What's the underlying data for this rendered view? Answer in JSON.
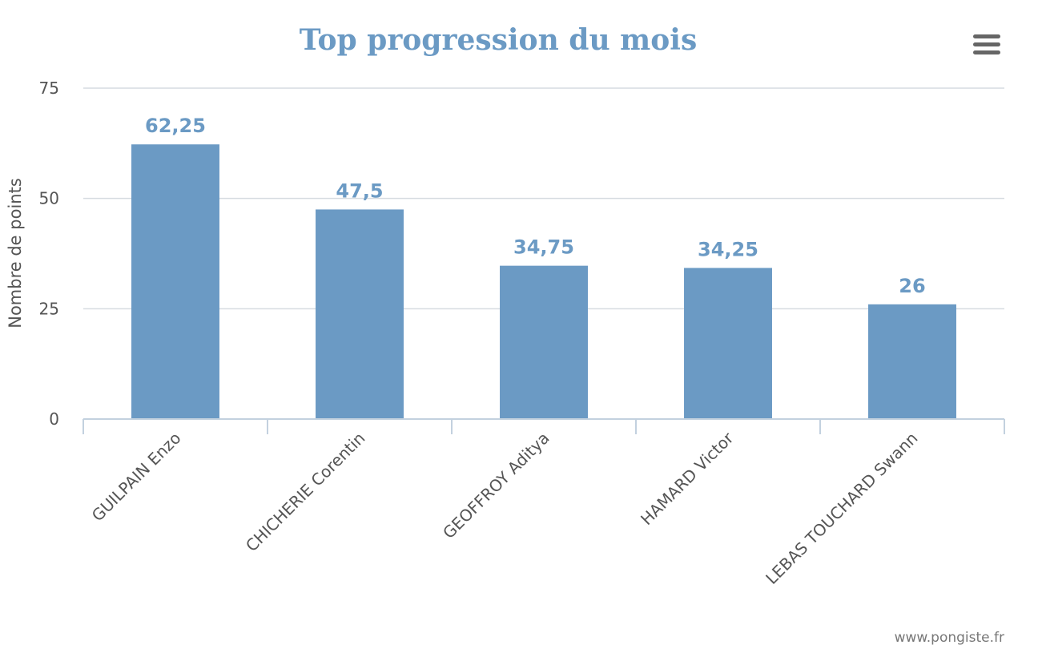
{
  "chart_data": {
    "type": "bar",
    "title": "Top progression du mois",
    "xlabel": "",
    "ylabel": "Nombre de points",
    "categories": [
      "GUILPAIN Enzo",
      "CHICHERIE Corentin",
      "GEOFFROY Aditya",
      "HAMARD Victor",
      "LEBAS TOUCHARD Swann"
    ],
    "values": [
      62.25,
      47.5,
      34.75,
      34.25,
      26
    ],
    "data_labels": [
      "62,25",
      "47,5",
      "34,75",
      "34,25",
      "26"
    ],
    "ylim": [
      0,
      75
    ],
    "yticks": [
      0,
      25,
      50,
      75
    ],
    "grid": true,
    "legend": "none",
    "bar_color": "#6b9ac4"
  },
  "menu": {
    "icon": "hamburger-menu-icon"
  },
  "credit": "www.pongiste.fr"
}
